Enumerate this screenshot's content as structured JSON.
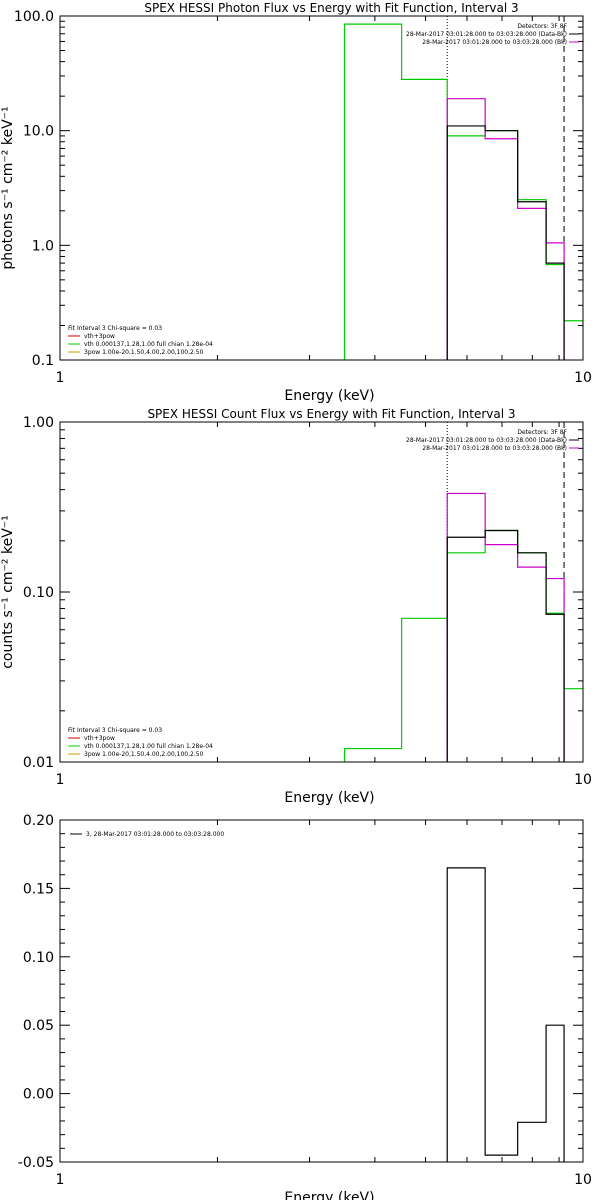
{
  "colors": {
    "black": "#000000",
    "magenta": "#cc00cc",
    "green": "#00cc00",
    "red": "#cc0000",
    "orange": "#cc9900"
  },
  "chart_data": [
    {
      "type": "line",
      "title": "SPEX HESSI Photon Flux vs Energy with Fit Function, Interval 3",
      "xlabel": "Energy (keV)",
      "ylabel": "photons s⁻¹ cm⁻² keV⁻¹",
      "xscale": "log",
      "yscale": "log",
      "xlim": [
        1,
        10
      ],
      "ylim": [
        0.1,
        100
      ],
      "xticks": [
        {
          "v": 1,
          "label": "1"
        },
        {
          "v": 10,
          "label": "10"
        }
      ],
      "yticks": [
        {
          "v": 0.1,
          "label": "0.1"
        },
        {
          "v": 1,
          "label": "1.0"
        },
        {
          "v": 10,
          "label": "10.0"
        },
        {
          "v": 100,
          "label": "100.0"
        }
      ],
      "legend_topright": [
        {
          "text": "Detectors: 3F 8F",
          "color": ""
        },
        {
          "text": "28-Mar-2017 03:01:28.000 to 03:03:28.000 (Data-Bk)",
          "color": "#000000"
        },
        {
          "text": "28-Mar-2017 03:01:28.000 to 03:03:28.000 (Bk)",
          "color": "#cc00cc"
        }
      ],
      "legend_bottomleft": [
        {
          "text": "Fit Interval 3   Chi-square = 0.03",
          "color": ""
        },
        {
          "text": "vth+3pow",
          "color": "#cc0000"
        },
        {
          "text": "vth 0.000137,1.28,1.00   full chian 1.28e-04",
          "color": "#00cc00"
        },
        {
          "text": "3pow 1.00e-20,1.50,4.00,2.00,100,2.50",
          "color": "#cc9900"
        }
      ],
      "vlines": [
        {
          "x": 5.5,
          "style": "dotted"
        },
        {
          "x": 9.2,
          "style": "dashed"
        }
      ],
      "series": [
        {
          "name": "vth 0.000137,1.28,1.00   full chian 1.28e-04",
          "color": "#00cc00",
          "step": true,
          "edges": [
            3.5,
            4.5,
            5.5,
            6.5,
            7.5,
            8.5,
            9.2,
            10
          ],
          "values": [
            85,
            28,
            9,
            10,
            2.5,
            0.68,
            0.22
          ]
        },
        {
          "name": "28-Mar-2017 03:01:28.000 to 03:03:28.000 (Bk)",
          "color": "#cc00cc",
          "step": true,
          "edges": [
            5.5,
            6.5,
            7.5,
            8.5,
            9.2
          ],
          "values": [
            19,
            8.5,
            2.1,
            1.05
          ]
        },
        {
          "name": "28-Mar-2017 03:01:28.000 to 03:03:28.000 (Data-Bk)",
          "color": "#000000",
          "step": true,
          "edges": [
            5.5,
            6.5,
            7.5,
            8.5,
            9.2
          ],
          "values": [
            11,
            10,
            2.4,
            0.7
          ]
        }
      ]
    },
    {
      "type": "line",
      "title": "SPEX HESSI Count Flux vs Energy with Fit Function, Interval 3",
      "xlabel": "Energy (keV)",
      "ylabel": "counts s⁻¹ cm⁻² keV⁻¹",
      "xscale": "log",
      "yscale": "log",
      "xlim": [
        1,
        10
      ],
      "ylim": [
        0.01,
        1
      ],
      "xticks": [
        {
          "v": 1,
          "label": "1"
        },
        {
          "v": 10,
          "label": "10"
        }
      ],
      "yticks": [
        {
          "v": 0.01,
          "label": "0.01"
        },
        {
          "v": 0.1,
          "label": "0.10"
        },
        {
          "v": 1,
          "label": "1.00"
        }
      ],
      "legend_topright": [
        {
          "text": "Detectors: 3F 8F",
          "color": ""
        },
        {
          "text": "28-Mar-2017 03:01:28.000 to 03:03:28.000 (Data-Bk)",
          "color": "#000000"
        },
        {
          "text": "28-Mar-2017 03:01:28.000 to 03:03:28.000 (Bk)",
          "color": "#cc00cc"
        }
      ],
      "legend_bottomleft": [
        {
          "text": "Fit Interval 3   Chi-square = 0.03",
          "color": ""
        },
        {
          "text": "vth+3pow",
          "color": "#cc0000"
        },
        {
          "text": "vth 0.000137,1.28,1.00   full chian 1.28e-04",
          "color": "#00cc00"
        },
        {
          "text": "3pow 1.00e-20,1.50,4.00,2.00,100,2.50",
          "color": "#cc9900"
        }
      ],
      "vlines": [
        {
          "x": 5.5,
          "style": "dotted"
        },
        {
          "x": 9.2,
          "style": "dashed"
        }
      ],
      "series": [
        {
          "name": "vth 0.000137,1.28,1.00   full chian 1.28e-04",
          "color": "#00cc00",
          "step": true,
          "edges": [
            3.5,
            4.5,
            5.5,
            6.5,
            7.5,
            8.5,
            9.2,
            10
          ],
          "values": [
            0.012,
            0.07,
            0.17,
            0.23,
            0.17,
            0.075,
            0.027
          ]
        },
        {
          "name": "28-Mar-2017 03:01:28.000 to 03:03:28.000 (Bk)",
          "color": "#cc00cc",
          "step": true,
          "edges": [
            5.5,
            6.5,
            7.5,
            8.5,
            9.2
          ],
          "values": [
            0.38,
            0.19,
            0.14,
            0.12
          ]
        },
        {
          "name": "28-Mar-2017 03:01:28.000 to 03:03:28.000 (Data-Bk)",
          "color": "#000000",
          "step": true,
          "edges": [
            5.5,
            6.5,
            7.5,
            8.5,
            9.2
          ],
          "values": [
            0.21,
            0.23,
            0.17,
            0.074
          ]
        }
      ]
    },
    {
      "type": "line",
      "title": "",
      "xlabel": "Energy (keV)",
      "ylabel": "",
      "xscale": "log",
      "yscale": "linear",
      "xlim": [
        1,
        10
      ],
      "ylim": [
        -0.05,
        0.2
      ],
      "xticks": [
        {
          "v": 1,
          "label": "1"
        },
        {
          "v": 10,
          "label": "10"
        }
      ],
      "yticks": [
        {
          "v": -0.05,
          "label": "-0.05"
        },
        {
          "v": 0,
          "label": "0.00"
        },
        {
          "v": 0.05,
          "label": "0.05"
        },
        {
          "v": 0.1,
          "label": "0.10"
        },
        {
          "v": 0.15,
          "label": "0.15"
        },
        {
          "v": 0.2,
          "label": "0.20"
        }
      ],
      "legend_topright": [],
      "legend_topleft": [
        {
          "text": "3, 28-Mar-2017 03:01:28.000 to 03:03:28.000",
          "color": "#000000"
        }
      ],
      "legend_bottomleft": [],
      "vlines": [],
      "series": [
        {
          "name": "3, 28-Mar-2017 03:01:28.000 to 03:03:28.000",
          "color": "#000000",
          "step": true,
          "edges": [
            5.5,
            6.5,
            7.5,
            8.5,
            9.2
          ],
          "values": [
            0.165,
            -0.045,
            -0.021,
            0.05
          ]
        }
      ]
    }
  ]
}
